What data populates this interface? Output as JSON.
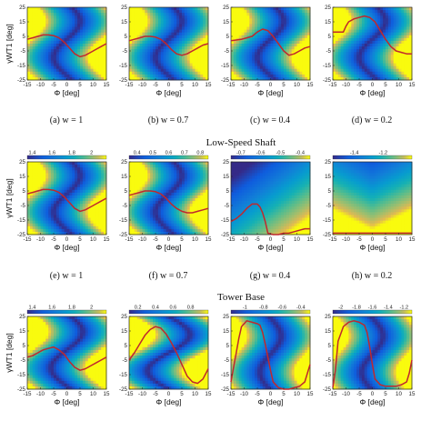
{
  "figure": {
    "section_titles": [
      "Low-Speed Shaft",
      "Tower Base"
    ],
    "xlabel": "Φ [deg]",
    "ylabel": "γWT1 [deg]",
    "captions": [
      "(a) w = 1",
      "(b) w = 0.7",
      "(c) w = 0.4",
      "(d) w = 0.2",
      "(e) w = 1",
      "(f) w = 0.7",
      "(g) w = 0.4",
      "(h) w = 0.2"
    ]
  },
  "chart_data": [
    {
      "id": "a",
      "type": "heatmap",
      "colormap": "parula",
      "row": 0,
      "col": 0,
      "xlim": [
        -15,
        15
      ],
      "ylim": [
        -25,
        25
      ],
      "xticks": [
        -15,
        -10,
        -5,
        0,
        5,
        10,
        15
      ],
      "yticks": [
        25,
        15,
        5,
        -5,
        -15,
        -25
      ],
      "colorbar": null,
      "field": {
        "kind": "wave",
        "amp": 5,
        "phase": -3
      },
      "line": {
        "color": "#c0282d",
        "x": [
          -15,
          -13,
          -11,
          -9,
          -7,
          -5,
          -3,
          -1,
          1,
          3,
          5,
          7,
          9,
          11,
          13,
          15
        ],
        "y": [
          3,
          4,
          5,
          6,
          6,
          5.5,
          4,
          1,
          -3,
          -7,
          -9,
          -8,
          -6,
          -4,
          -2,
          0
        ]
      }
    },
    {
      "id": "b",
      "type": "heatmap",
      "colormap": "parula",
      "row": 0,
      "col": 1,
      "xlim": [
        -15,
        15
      ],
      "ylim": [
        -25,
        25
      ],
      "xticks": [
        -15,
        -10,
        -5,
        0,
        5,
        10,
        15
      ],
      "yticks": [
        25,
        15,
        5,
        -5,
        -15,
        -25
      ],
      "colorbar": null,
      "field": {
        "kind": "wave",
        "amp": 5,
        "phase": -3
      },
      "line": {
        "color": "#c0282d",
        "x": [
          -15,
          -13,
          -11,
          -9,
          -7,
          -5,
          -3,
          -1,
          1,
          3,
          5,
          7,
          9,
          11,
          13,
          15
        ],
        "y": [
          2,
          3,
          4,
          5,
          5,
          4.5,
          3,
          0,
          -4,
          -7,
          -8,
          -7,
          -5,
          -3,
          -1,
          0
        ]
      }
    },
    {
      "id": "c",
      "type": "heatmap",
      "colormap": "parula",
      "row": 0,
      "col": 2,
      "xlim": [
        -15,
        15
      ],
      "ylim": [
        -25,
        25
      ],
      "xticks": [
        -15,
        -10,
        -5,
        0,
        5,
        10,
        15
      ],
      "yticks": [
        25,
        15,
        5,
        -5,
        -15,
        -25
      ],
      "colorbar": null,
      "field": {
        "kind": "wave",
        "amp": 5,
        "phase": -3
      },
      "line": {
        "color": "#c0282d",
        "x": [
          -15,
          -13,
          -11,
          -9,
          -7,
          -5,
          -3,
          -1,
          1,
          3,
          5,
          7,
          9,
          11,
          13,
          15
        ],
        "y": [
          2,
          2.5,
          3,
          4,
          5,
          8,
          10,
          9,
          5,
          0,
          -5,
          -8,
          -7,
          -5,
          -3,
          -2
        ]
      }
    },
    {
      "id": "d",
      "type": "heatmap",
      "colormap": "parula",
      "row": 0,
      "col": 3,
      "xlim": [
        -15,
        15
      ],
      "ylim": [
        -25,
        25
      ],
      "xticks": [
        -15,
        -10,
        -5,
        0,
        5,
        10,
        15
      ],
      "yticks": [
        25,
        15,
        5,
        -5,
        -15,
        -25
      ],
      "colorbar": null,
      "field": {
        "kind": "wave",
        "amp": 5,
        "phase": -3
      },
      "line": {
        "color": "#c0282d",
        "x": [
          -15,
          -13,
          -11,
          -10,
          -9,
          -7,
          -5,
          -3,
          -1,
          1,
          3,
          5,
          7,
          9,
          11,
          13,
          15
        ],
        "y": [
          8,
          8,
          8,
          12,
          15,
          17,
          18,
          19,
          18,
          15,
          9,
          3,
          -2,
          -5,
          -6,
          -7,
          -7
        ]
      }
    },
    {
      "id": "e",
      "type": "heatmap",
      "colormap": "parula",
      "row": 1,
      "col": 0,
      "xlim": [
        -15,
        15
      ],
      "ylim": [
        -25,
        25
      ],
      "xticks": [
        -15,
        -10,
        -5,
        0,
        5,
        10,
        15
      ],
      "yticks": [
        25,
        15,
        5,
        -5,
        -15,
        -25
      ],
      "colorbar": {
        "range": [
          1.35,
          2.15
        ],
        "ticks": [
          1.4,
          1.6,
          1.8,
          2
        ]
      },
      "field": {
        "kind": "wave",
        "amp": 5,
        "phase": -3
      },
      "line": {
        "color": "#c0282d",
        "x": [
          -15,
          -13,
          -11,
          -9,
          -7,
          -5,
          -3,
          -1,
          1,
          3,
          5,
          7,
          9,
          11,
          13,
          15
        ],
        "y": [
          3,
          4,
          5,
          6,
          6,
          5.5,
          4,
          1,
          -3,
          -7,
          -9,
          -8,
          -6,
          -4,
          -2,
          0
        ]
      }
    },
    {
      "id": "f",
      "type": "heatmap",
      "colormap": "parula",
      "row": 1,
      "col": 1,
      "xlim": [
        -15,
        15
      ],
      "ylim": [
        -25,
        25
      ],
      "xticks": [
        -15,
        -10,
        -5,
        0,
        5,
        10,
        15
      ],
      "yticks": [
        25,
        15,
        5,
        -5,
        -15,
        -25
      ],
      "colorbar": {
        "range": [
          0.35,
          0.85
        ],
        "ticks": [
          0.4,
          0.5,
          0.6,
          0.7,
          0.8
        ]
      },
      "field": {
        "kind": "wave",
        "amp": 5,
        "phase": -3
      },
      "line": {
        "color": "#c0282d",
        "x": [
          -15,
          -13,
          -11,
          -9,
          -7,
          -5,
          -3,
          -1,
          1,
          3,
          5,
          7,
          9,
          11,
          13,
          15
        ],
        "y": [
          2,
          3,
          4,
          5,
          5,
          4.5,
          3,
          0,
          -4,
          -7,
          -9,
          -10,
          -10,
          -9,
          -8,
          -7
        ]
      }
    },
    {
      "id": "g",
      "type": "heatmap",
      "colormap": "parula",
      "row": 1,
      "col": 2,
      "xlim": [
        -15,
        15
      ],
      "ylim": [
        -25,
        25
      ],
      "xticks": [
        -15,
        -10,
        -5,
        0,
        5,
        10,
        15
      ],
      "yticks": [
        25,
        15,
        5,
        -5,
        -15,
        -25
      ],
      "colorbar": {
        "range": [
          -0.75,
          -0.35
        ],
        "ticks": [
          -0.7,
          -0.6,
          -0.5,
          -0.4
        ]
      },
      "field": {
        "kind": "diag"
      },
      "line": {
        "color": "#c0282d",
        "x": [
          -15,
          -13,
          -11,
          -9,
          -7,
          -5,
          -4,
          -3,
          -2,
          -1,
          1,
          3,
          5,
          7,
          9,
          11,
          13,
          15
        ],
        "y": [
          -16,
          -14,
          -11,
          -7,
          -4,
          -4,
          -6,
          -10,
          -16,
          -24,
          -25,
          -25,
          -24,
          -24,
          -23,
          -22,
          -21,
          -21
        ]
      }
    },
    {
      "id": "h",
      "type": "heatmap",
      "colormap": "parula",
      "row": 1,
      "col": 3,
      "xlim": [
        -15,
        15
      ],
      "ylim": [
        -25,
        25
      ],
      "xticks": [
        -15,
        -10,
        -5,
        0,
        5,
        10,
        15
      ],
      "yticks": [
        25,
        15,
        5,
        -5,
        -15,
        -25
      ],
      "colorbar": {
        "range": [
          -1.55,
          -1.0
        ],
        "ticks": [
          -1.4,
          -1.2
        ]
      },
      "field": {
        "kind": "bowl"
      },
      "line": {
        "color": "#c0282d",
        "x": [
          -15,
          15
        ],
        "y": [
          -24,
          -24
        ]
      }
    },
    {
      "id": "i",
      "type": "heatmap",
      "colormap": "parula",
      "row": 2,
      "col": 0,
      "xlim": [
        -15,
        15
      ],
      "ylim": [
        -25,
        25
      ],
      "xticks": [
        -15,
        -10,
        -5,
        0,
        5,
        10,
        15
      ],
      "yticks": [
        25,
        15,
        5,
        -5,
        -15,
        -25
      ],
      "colorbar": {
        "range": [
          1.35,
          2.15
        ],
        "ticks": [
          1.4,
          1.6,
          1.8,
          2
        ]
      },
      "field": {
        "kind": "wave",
        "amp": 6,
        "phase": -2
      },
      "line": {
        "color": "#c0282d",
        "x": [
          -15,
          -13,
          -11,
          -9,
          -7,
          -5,
          -3,
          -1,
          1,
          3,
          5,
          7,
          9,
          11,
          13,
          15
        ],
        "y": [
          -3,
          -2,
          0,
          2,
          3,
          4,
          2,
          -1,
          -6,
          -10,
          -12,
          -11,
          -9,
          -7,
          -5,
          -3
        ]
      }
    },
    {
      "id": "j",
      "type": "heatmap",
      "colormap": "parula",
      "row": 2,
      "col": 1,
      "xlim": [
        -15,
        15
      ],
      "ylim": [
        -25,
        25
      ],
      "xticks": [
        -15,
        -10,
        -5,
        0,
        5,
        10,
        15
      ],
      "yticks": [
        25,
        15,
        5,
        -5,
        -15,
        -25
      ],
      "colorbar": {
        "range": [
          0.1,
          1.0
        ],
        "ticks": [
          0.2,
          0.4,
          0.6,
          0.8
        ]
      },
      "field": {
        "kind": "wave",
        "amp": 8,
        "phase": 0
      },
      "line": {
        "color": "#c0282d",
        "x": [
          -15,
          -13,
          -11,
          -9,
          -7,
          -5,
          -3,
          -1,
          1,
          3,
          5,
          7,
          9,
          11,
          13,
          15
        ],
        "y": [
          -5,
          0,
          6,
          12,
          16,
          18,
          17,
          13,
          7,
          0,
          -8,
          -16,
          -20,
          -21,
          -18,
          -11
        ]
      }
    },
    {
      "id": "k",
      "type": "heatmap",
      "colormap": "parula",
      "row": 2,
      "col": 2,
      "xlim": [
        -15,
        15
      ],
      "ylim": [
        -25,
        25
      ],
      "xticks": [
        -15,
        -10,
        -5,
        0,
        5,
        10,
        15
      ],
      "yticks": [
        25,
        15,
        5,
        -5,
        -15,
        -25
      ],
      "colorbar": {
        "range": [
          -1.15,
          -0.3
        ],
        "ticks": [
          -1,
          -0.8,
          -0.6,
          -0.4
        ]
      },
      "field": {
        "kind": "wave",
        "amp": 4,
        "phase": 1
      },
      "line": {
        "color": "#c0282d",
        "x": [
          -15,
          -14,
          -13,
          -12,
          -11,
          -9,
          -7,
          -5,
          -4,
          -3,
          -2,
          -1,
          0,
          1,
          3,
          5,
          7,
          9,
          11,
          13,
          14,
          15
        ],
        "y": [
          -20,
          -10,
          0,
          10,
          18,
          22,
          21,
          20,
          19,
          14,
          6,
          -3,
          -12,
          -20,
          -24,
          -25,
          -25,
          -24,
          -23,
          -20,
          -14,
          -8
        ]
      }
    },
    {
      "id": "l",
      "type": "heatmap",
      "colormap": "parula",
      "row": 2,
      "col": 3,
      "xlim": [
        -15,
        15
      ],
      "ylim": [
        -25,
        25
      ],
      "xticks": [
        -15,
        -10,
        -5,
        0,
        5,
        10,
        15
      ],
      "yticks": [
        25,
        15,
        5,
        -5,
        -15,
        -25
      ],
      "colorbar": {
        "range": [
          -2.1,
          -1.1
        ],
        "ticks": [
          -2,
          -1.8,
          -1.6,
          -1.4,
          -1.2
        ]
      },
      "field": {
        "kind": "wave",
        "amp": 4,
        "phase": 1
      },
      "line": {
        "color": "#c0282d",
        "x": [
          -15,
          -14,
          -13,
          -11,
          -9,
          -7,
          -5,
          -3,
          -2,
          -1,
          0,
          1,
          3,
          5,
          7,
          9,
          11,
          13,
          14,
          15
        ],
        "y": [
          -24,
          -12,
          8,
          18,
          21,
          22,
          21,
          19,
          14,
          4,
          -8,
          -18,
          -22,
          -23,
          -23,
          -23,
          -22,
          -20,
          -14,
          -5
        ]
      }
    }
  ]
}
